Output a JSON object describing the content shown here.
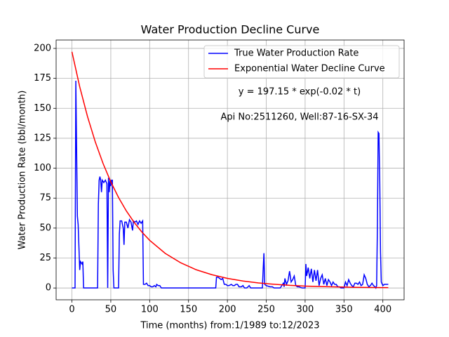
{
  "chart_data": {
    "type": "line",
    "title": "Water Production Decline Curve",
    "xlabel": "Time (months) from:1/1989 to:12/2023",
    "ylabel": "Water Production Rate (bbl/month)",
    "xlim": [
      -20.35,
      427.35
    ],
    "ylim": [
      -9.86,
      207.01
    ],
    "xticks": [
      0,
      50,
      100,
      150,
      200,
      250,
      300,
      350,
      400
    ],
    "yticks": [
      0,
      25,
      50,
      75,
      100,
      125,
      150,
      175,
      200
    ],
    "grid": true,
    "legend": "upper right",
    "annotations": [
      "y = 197.15 * exp(-0.02 * t)",
      "Api No:2511260, Well:87-16-SX-34"
    ],
    "series": [
      {
        "name": "True Water Production Rate",
        "color": "#0000ff",
        "x": [
          0,
          4,
          5,
          7,
          8,
          10,
          11,
          13,
          14,
          15,
          33,
          34,
          35,
          36,
          37,
          38,
          39,
          41,
          43,
          45,
          46,
          47,
          48,
          49,
          50,
          51,
          52,
          53,
          54,
          60,
          61,
          62,
          64,
          66,
          67,
          68,
          70,
          72,
          74,
          76,
          78,
          79,
          81,
          83,
          85,
          87,
          89,
          91,
          92,
          94,
          96,
          98,
          100,
          102,
          104,
          106,
          108,
          109,
          111,
          113,
          115,
          180,
          185,
          186,
          188,
          190,
          192,
          194,
          196,
          198,
          200,
          202,
          205,
          207,
          209,
          211,
          213,
          215,
          218,
          220,
          222,
          225,
          228,
          230,
          245,
          246,
          247,
          248,
          250,
          255,
          258,
          260,
          268,
          270,
          272,
          273,
          274,
          276,
          278,
          280,
          282,
          284,
          286,
          288,
          290,
          292,
          296,
          300,
          301,
          302,
          304,
          306,
          308,
          310,
          312,
          314,
          316,
          318,
          320,
          322,
          324,
          326,
          328,
          330,
          332,
          334,
          336,
          338,
          340,
          342,
          344,
          346,
          350,
          352,
          354,
          356,
          358,
          360,
          362,
          364,
          366,
          368,
          370,
          372,
          374,
          376,
          378,
          380,
          382,
          384,
          386,
          388,
          390,
          391,
          392,
          393,
          394,
          395,
          396,
          397,
          398,
          400,
          402,
          405,
          407
        ],
        "values": [
          0,
          0,
          173,
          60,
          53,
          15,
          22,
          20,
          22,
          0,
          0,
          70,
          90,
          93,
          90,
          80,
          90,
          88,
          90,
          87,
          0,
          92,
          80,
          90,
          85,
          90,
          90,
          15,
          0,
          0,
          45,
          56,
          56,
          50,
          36,
          55,
          55,
          50,
          57,
          55,
          48,
          56,
          55,
          56,
          53,
          56,
          54,
          56,
          3,
          3,
          4,
          2,
          2,
          1,
          1,
          2,
          1,
          3,
          2,
          2,
          0,
          0,
          0,
          9,
          9,
          8,
          7,
          8,
          3,
          3,
          2,
          2,
          3,
          2,
          2,
          3,
          3,
          1,
          1,
          2,
          0,
          0,
          2,
          0,
          0,
          15,
          29,
          3,
          2,
          1,
          1,
          0,
          0,
          2,
          4,
          1,
          8,
          3,
          6,
          14,
          5,
          7,
          10,
          2,
          1,
          1,
          0,
          0,
          20,
          10,
          17,
          8,
          16,
          5,
          15,
          6,
          15,
          2,
          8,
          11,
          3,
          8,
          2,
          7,
          5,
          2,
          5,
          3,
          3,
          1,
          1,
          0,
          0,
          5,
          2,
          7,
          4,
          2,
          1,
          4,
          4,
          3,
          5,
          2,
          3,
          11,
          8,
          3,
          1,
          2,
          4,
          2,
          1,
          0,
          2,
          50,
          130,
          129,
          90,
          30,
          5,
          2,
          3,
          3,
          3
        ]
      },
      {
        "name": "Exponential Water Decline Curve",
        "color": "#ff0000",
        "x": [
          0,
          10,
          20,
          30,
          40,
          50,
          60,
          70,
          80,
          90,
          100,
          120,
          140,
          160,
          180,
          200,
          220,
          240,
          260,
          280,
          300,
          320,
          340,
          360,
          380,
          400,
          407
        ],
        "values": [
          197.15,
          168.0,
          143.2,
          122.0,
          104.0,
          88.6,
          75.5,
          64.3,
          54.8,
          46.7,
          39.8,
          28.9,
          21.0,
          15.2,
          11.1,
          8.0,
          5.8,
          4.2,
          3.1,
          2.2,
          1.6,
          1.2,
          0.9,
          0.6,
          0.5,
          0.3,
          0.3
        ]
      }
    ]
  }
}
